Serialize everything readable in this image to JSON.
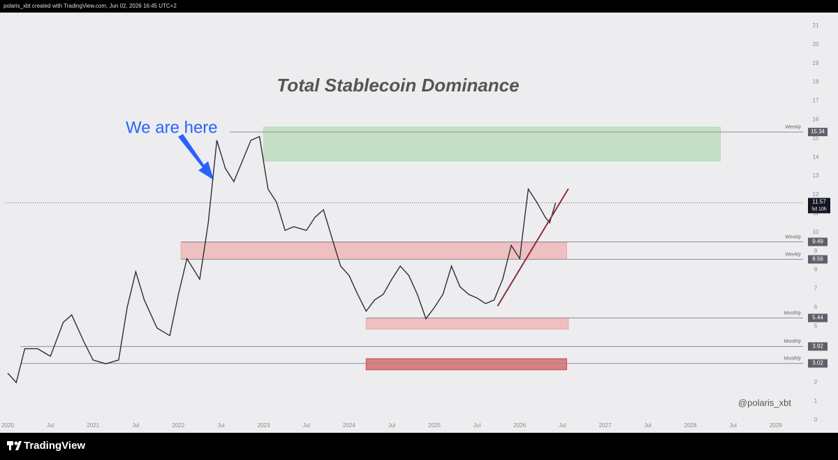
{
  "chart_data": {
    "type": "line",
    "header": "polaris_xbt created with TradingView.com, Jun 02, 2026 16:45 UTC+2",
    "title": "Total Stablecoin Dominance",
    "annotation": "We are here",
    "watermark": "@polaris_xbt",
    "brand": "TradingView",
    "x": [
      2020.0,
      2020.1,
      2020.2,
      2020.35,
      2020.5,
      2020.65,
      2020.75,
      2020.9,
      2021.0,
      2021.15,
      2021.3,
      2021.4,
      2021.5,
      2021.6,
      2021.75,
      2021.9,
      2022.0,
      2022.1,
      2022.25,
      2022.35,
      2022.45,
      2022.55,
      2022.65,
      2022.75,
      2022.85,
      2022.95,
      2023.05,
      2023.15,
      2023.25,
      2023.35,
      2023.5,
      2023.6,
      2023.7,
      2023.8,
      2023.9,
      2024.0,
      2024.1,
      2024.2,
      2024.3,
      2024.4,
      2024.5,
      2024.6,
      2024.7,
      2024.8,
      2024.9,
      2025.0,
      2025.1,
      2025.2,
      2025.3,
      2025.4,
      2025.5,
      2025.6,
      2025.7,
      2025.8,
      2025.9,
      2026.0,
      2026.05,
      2026.1,
      2026.2,
      2026.3,
      2026.35,
      2026.42
    ],
    "series": [
      {
        "color": "#2a2e39",
        "values": [
          2.5,
          2.0,
          3.8,
          3.8,
          3.4,
          5.2,
          5.6,
          4.1,
          3.2,
          3.0,
          3.2,
          6.0,
          7.9,
          6.4,
          4.9,
          4.5,
          6.7,
          8.6,
          7.5,
          10.5,
          14.9,
          13.4,
          12.7,
          13.8,
          14.9,
          15.1,
          12.3,
          11.6,
          10.1,
          10.3,
          10.1,
          10.8,
          11.2,
          9.7,
          8.2,
          7.7,
          6.7,
          5.8,
          6.4,
          6.7,
          7.5,
          8.2,
          7.7,
          6.7,
          5.4,
          6.0,
          6.7,
          8.2,
          7.1,
          6.7,
          6.5,
          6.2,
          6.4,
          7.5,
          9.3,
          8.6,
          10.5,
          12.3,
          11.6,
          10.8,
          10.5,
          11.57
        ]
      }
    ],
    "xlim": [
      2019.975,
      2029.32
    ],
    "ylim": [
      -0.6,
      21.7
    ],
    "xticks": [
      2020,
      {
        "value": 2020.5,
        "label": "Jul"
      },
      2021,
      {
        "value": 2021.5,
        "label": "Jul"
      },
      2022,
      {
        "value": 2022.5,
        "label": "Jul"
      },
      2023,
      {
        "value": 2023.5,
        "label": "Jul"
      },
      2024,
      {
        "value": 2024.5,
        "label": "Jul"
      },
      2025,
      {
        "value": 2025.5,
        "label": "Jul"
      },
      2026,
      {
        "value": 2026.5,
        "label": "Jul"
      },
      2027,
      {
        "value": 2027.5,
        "label": "Jul"
      },
      2028,
      {
        "value": 2028.5,
        "label": "Jul"
      },
      2029
    ],
    "yticks": [
      0,
      1,
      2,
      3,
      4,
      5,
      6,
      7,
      8,
      9,
      10,
      11,
      12,
      13,
      14,
      15,
      16,
      17,
      18,
      19,
      20,
      21
    ],
    "levels": [
      {
        "value": 15.34,
        "label": "Weekly",
        "from": 2022.6
      },
      {
        "value": 9.49,
        "label": "Weekly",
        "from": 2022.03
      },
      {
        "value": 8.56,
        "label": "Weekly",
        "from": 2022.03
      },
      {
        "value": 5.44,
        "label": "Monthly",
        "from": 2024.2
      },
      {
        "value": 3.92,
        "label": "Monthly",
        "from": 2020.15
      },
      {
        "value": 3.02,
        "label": "Monthly",
        "from": 2020.15
      }
    ],
    "zones": [
      {
        "x": [
          2023.0,
          2028.35
        ],
        "y": [
          13.8,
          15.6
        ],
        "color": "#a5d6a7"
      },
      {
        "x": [
          2022.03,
          2026.55
        ],
        "y": [
          8.56,
          9.45
        ],
        "color": "#ef9a9a"
      },
      {
        "x": [
          2024.2,
          2026.57
        ],
        "y": [
          4.84,
          5.43
        ],
        "color": "#ef9a9a"
      },
      {
        "x": [
          2024.2,
          2026.55
        ],
        "y": [
          2.68,
          3.27
        ],
        "color": "#c62828"
      }
    ],
    "trendline": {
      "x": [
        2025.74,
        2026.57
      ],
      "y": [
        6.07,
        12.32
      ],
      "color": "#8b2e3c"
    },
    "last": {
      "value": 11.57,
      "countdown": "5d 10h"
    }
  }
}
